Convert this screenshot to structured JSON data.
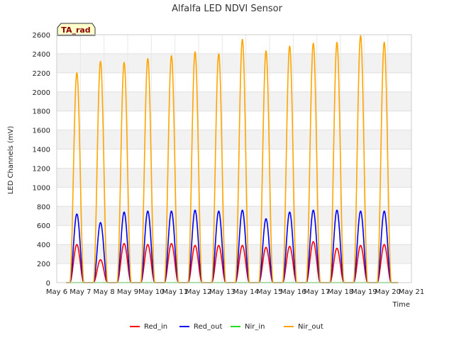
{
  "chart_data": {
    "type": "line",
    "title": "Alfalfa LED NDVI Sensor",
    "xlabel": "Time",
    "ylabel": "LED Channels (mV)",
    "ylim": [
      0,
      2600
    ],
    "yticks": [
      0,
      200,
      400,
      600,
      800,
      1000,
      1200,
      1400,
      1600,
      1800,
      2000,
      2200,
      2400,
      2600
    ],
    "xlim_days": [
      6,
      21
    ],
    "xticks": [
      {
        "day": 6,
        "label": "May 6"
      },
      {
        "day": 7,
        "label": "May 7"
      },
      {
        "day": 8,
        "label": "May 8"
      },
      {
        "day": 9,
        "label": "May 9"
      },
      {
        "day": 10,
        "label": "May 10"
      },
      {
        "day": 11,
        "label": "May 11"
      },
      {
        "day": 12,
        "label": "May 12"
      },
      {
        "day": 13,
        "label": "May 13"
      },
      {
        "day": 14,
        "label": "May 14"
      },
      {
        "day": 15,
        "label": "May 15"
      },
      {
        "day": 16,
        "label": "May 16"
      },
      {
        "day": 17,
        "label": "May 17"
      },
      {
        "day": 18,
        "label": "May 18"
      },
      {
        "day": 19,
        "label": "May 19"
      },
      {
        "day": 20,
        "label": "May 20"
      },
      {
        "day": 21,
        "label": "May 21"
      }
    ],
    "grid": true,
    "legend_position": "bottom-center",
    "annotation": "TA_rad",
    "series_style": [
      {
        "name": "Red_in",
        "color": "#ff0000"
      },
      {
        "name": "Red_out",
        "color": "#0000ee"
      },
      {
        "name": "Nir_in",
        "color": "#22dd22"
      },
      {
        "name": "Nir_out",
        "color": "#ffa500"
      }
    ],
    "daily_peaks": {
      "days": [
        6.85,
        7.85,
        8.85,
        9.85,
        10.85,
        11.85,
        12.85,
        13.85,
        14.85,
        15.85,
        16.85,
        17.85,
        18.85,
        19.85
      ],
      "Nir_out": [
        2200,
        2320,
        2310,
        2350,
        2380,
        2420,
        2400,
        2550,
        2430,
        2480,
        2510,
        2520,
        2590,
        2520
      ],
      "Red_out": [
        720,
        630,
        740,
        750,
        750,
        760,
        750,
        760,
        670,
        740,
        760,
        760,
        750,
        750
      ],
      "Red_in": [
        400,
        240,
        410,
        400,
        410,
        390,
        390,
        390,
        370,
        380,
        430,
        360,
        390,
        400
      ],
      "Nir_in": [
        0,
        0,
        0,
        0,
        0,
        0,
        0,
        0,
        0,
        0,
        0,
        0,
        0,
        0
      ]
    },
    "data_end_day": 20.45
  }
}
